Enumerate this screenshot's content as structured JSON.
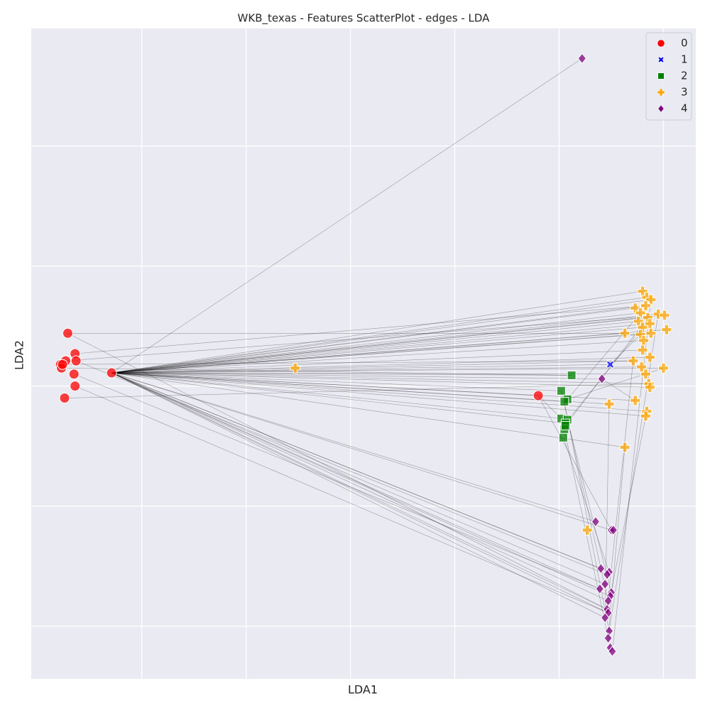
{
  "chart_data": {
    "type": "scatter",
    "title": "WKB_texas - Features ScatterPlot - edges - LDA",
    "x_label": "LDA1",
    "y_label": "LDA2",
    "xlim": [
      -3.06,
      3.31
    ],
    "ylim": [
      -2.44,
      2.98
    ],
    "xticks": [
      -2,
      -1,
      0,
      1,
      2,
      3
    ],
    "yticks": [
      -2,
      -1,
      0,
      1,
      2
    ],
    "grid": true,
    "legend": "upper right",
    "series": [
      {
        "name": "0",
        "color": "red",
        "marker": "circle",
        "x": [
          -2.71,
          -2.64,
          -2.73,
          -2.63,
          -2.78,
          -2.77,
          -2.65,
          -2.64,
          -2.74,
          -2.29,
          1.8,
          -2.76
        ],
        "y": [
          0.44,
          0.27,
          0.21,
          0.21,
          0.18,
          0.15,
          0.1,
          0.0,
          -0.1,
          0.11,
          -0.08,
          0.18
        ]
      },
      {
        "name": "1",
        "color": "blue",
        "marker": "x",
        "x": [
          2.49
        ],
        "y": [
          0.18
        ]
      },
      {
        "name": "2",
        "color": "green",
        "marker": "square",
        "x": [
          2.12,
          2.02,
          2.08,
          2.05,
          2.02,
          2.08,
          2.06,
          2.05,
          2.06,
          2.04
        ],
        "y": [
          0.09,
          -0.04,
          -0.11,
          -0.13,
          -0.27,
          -0.28,
          -0.31,
          -0.36,
          -0.33,
          -0.43
        ]
      },
      {
        "name": "3",
        "color": "orange",
        "marker": "plus",
        "x": [
          -0.53,
          2.8,
          2.84,
          2.88,
          2.73,
          2.83,
          2.78,
          2.95,
          3.01,
          2.85,
          2.76,
          2.87,
          2.8,
          2.63,
          2.78,
          2.88,
          3.03,
          2.81,
          2.8,
          2.87,
          2.71,
          2.79,
          3.0,
          2.83,
          2.86,
          2.87,
          2.48,
          2.73,
          2.84,
          2.83,
          2.63,
          2.27
        ],
        "y": [
          0.15,
          0.79,
          0.74,
          0.72,
          0.65,
          0.67,
          0.61,
          0.6,
          0.59,
          0.57,
          0.54,
          0.52,
          0.49,
          0.44,
          0.43,
          0.44,
          0.47,
          0.38,
          0.3,
          0.24,
          0.21,
          0.16,
          0.15,
          0.1,
          0.02,
          -0.01,
          -0.15,
          -0.12,
          -0.21,
          -0.25,
          -0.51,
          -1.2
        ]
      },
      {
        "name": "4",
        "color": "purple",
        "marker": "diamond",
        "x": [
          2.22,
          2.41,
          2.35,
          2.5,
          2.52,
          2.4,
          2.48,
          2.46,
          2.44,
          2.39,
          2.5,
          2.49,
          2.47,
          2.46,
          2.47,
          2.44,
          2.48,
          2.47,
          2.49,
          2.51
        ],
        "y": [
          2.73,
          0.06,
          -1.13,
          -1.2,
          -1.2,
          -1.52,
          -1.55,
          -1.57,
          -1.65,
          -1.69,
          -1.72,
          -1.75,
          -1.79,
          -1.86,
          -1.89,
          -1.93,
          -2.04,
          -2.1,
          -2.18,
          -2.21
        ]
      }
    ],
    "edges": [
      [
        0,
        9,
        3,
        1
      ],
      [
        0,
        9,
        3,
        2
      ],
      [
        0,
        9,
        3,
        3
      ],
      [
        0,
        9,
        3,
        4
      ],
      [
        0,
        9,
        3,
        5
      ],
      [
        0,
        9,
        3,
        6
      ],
      [
        0,
        9,
        3,
        7
      ],
      [
        0,
        9,
        3,
        8
      ],
      [
        0,
        9,
        3,
        9
      ],
      [
        0,
        9,
        3,
        10
      ],
      [
        0,
        9,
        3,
        11
      ],
      [
        0,
        9,
        3,
        12
      ],
      [
        0,
        9,
        3,
        13
      ],
      [
        0,
        9,
        3,
        14
      ],
      [
        0,
        9,
        3,
        15
      ],
      [
        0,
        9,
        3,
        16
      ],
      [
        0,
        9,
        3,
        17
      ],
      [
        0,
        9,
        3,
        18
      ],
      [
        0,
        9,
        3,
        19
      ],
      [
        0,
        9,
        3,
        20
      ],
      [
        0,
        9,
        3,
        21
      ],
      [
        0,
        9,
        3,
        22
      ],
      [
        0,
        9,
        3,
        23
      ],
      [
        0,
        9,
        3,
        24
      ],
      [
        0,
        9,
        3,
        25
      ],
      [
        0,
        9,
        3,
        26
      ],
      [
        0,
        9,
        3,
        27
      ],
      [
        0,
        9,
        3,
        28
      ],
      [
        0,
        9,
        3,
        29
      ],
      [
        0,
        9,
        3,
        30
      ],
      [
        0,
        9,
        4,
        0
      ],
      [
        0,
        9,
        4,
        1
      ],
      [
        0,
        9,
        4,
        2
      ],
      [
        0,
        9,
        4,
        3
      ],
      [
        0,
        9,
        4,
        5
      ],
      [
        0,
        9,
        4,
        6
      ],
      [
        0,
        9,
        4,
        8
      ],
      [
        0,
        9,
        4,
        9
      ],
      [
        0,
        9,
        4,
        11
      ],
      [
        0,
        9,
        4,
        12
      ],
      [
        0,
        9,
        4,
        13
      ],
      [
        0,
        9,
        4,
        14
      ],
      [
        0,
        9,
        4,
        15
      ],
      [
        0,
        9,
        2,
        0
      ],
      [
        0,
        9,
        2,
        1
      ],
      [
        0,
        9,
        2,
        3
      ],
      [
        0,
        9,
        2,
        4
      ],
      [
        0,
        9,
        2,
        6
      ],
      [
        0,
        9,
        1,
        0
      ],
      [
        0,
        9,
        0,
        10
      ],
      [
        0,
        0,
        3,
        13
      ],
      [
        0,
        1,
        3,
        5
      ],
      [
        0,
        2,
        3,
        8
      ],
      [
        0,
        4,
        3,
        20
      ],
      [
        0,
        5,
        2,
        0
      ],
      [
        0,
        6,
        4,
        9
      ],
      [
        0,
        8,
        3,
        24
      ],
      [
        0,
        7,
        4,
        14
      ],
      [
        0,
        3,
        4,
        7
      ],
      [
        0,
        0,
        4,
        13
      ],
      [
        0,
        10,
        4,
        3
      ],
      [
        0,
        10,
        2,
        4
      ],
      [
        2,
        1,
        4,
        12
      ],
      [
        2,
        3,
        4,
        16
      ],
      [
        2,
        5,
        4,
        10
      ],
      [
        2,
        9,
        4,
        6
      ],
      [
        2,
        7,
        4,
        18
      ],
      [
        2,
        2,
        3,
        6
      ],
      [
        2,
        8,
        3,
        9
      ],
      [
        3,
        3,
        4,
        19
      ],
      [
        3,
        26,
        4,
        15
      ],
      [
        3,
        30,
        4,
        17
      ],
      [
        3,
        20,
        4,
        13
      ],
      [
        3,
        22,
        2,
        2
      ],
      [
        3,
        12,
        2,
        6
      ],
      [
        3,
        27,
        4,
        1
      ],
      [
        1,
        0,
        3,
        14
      ],
      [
        3,
        28,
        4,
        11
      ],
      [
        3,
        7,
        4,
        16
      ]
    ]
  }
}
